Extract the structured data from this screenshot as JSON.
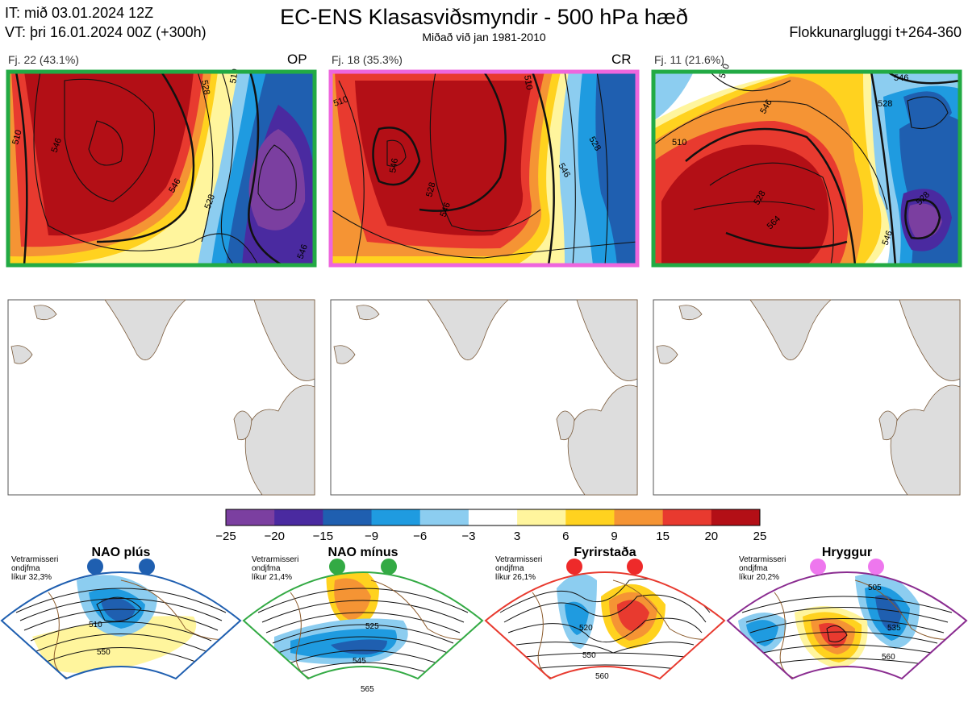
{
  "header": {
    "it_line": "IT: mið 03.01.2024 12Z",
    "vt_line": "VT: þri 16.01.2024 00Z  (+300h)",
    "title": "EC-ENS Klasasviðsmyndir - 500 hPa hæð",
    "subtitle": "Miðað við jan 1981-2010",
    "window": "Flokkunargluggi t+264-360"
  },
  "clusters": [
    {
      "label": "Fj. 22 (43.1%)",
      "code": "OP",
      "frame_color": "#22aa44",
      "contours": [
        "510",
        "546",
        "528",
        "546",
        "528",
        "546",
        "510"
      ]
    },
    {
      "label": "Fj. 18 (35.3%)",
      "code": "CR",
      "frame_color": "#ee66dd",
      "contours": [
        "510",
        "546",
        "528",
        "546",
        "510",
        "546",
        "528"
      ]
    },
    {
      "label": "Fj. 11 (21.6%)",
      "code": "",
      "frame_color": "#22aa44",
      "contours": [
        "510",
        "546",
        "528",
        "510",
        "546",
        "528",
        "546",
        "564"
      ]
    }
  ],
  "colorbar": {
    "ticks": [
      "−25",
      "−20",
      "−15",
      "−9",
      "−6",
      "−3",
      "3",
      "6",
      "9",
      "15",
      "20",
      "25"
    ],
    "colors": [
      "#7b3fa0",
      "#4a2aa0",
      "#1f5fb0",
      "#1f9be0",
      "#8ccdf0",
      "#ffffff",
      "#fff59d",
      "#ffd21f",
      "#f59434",
      "#e83a2f",
      "#b30f16"
    ]
  },
  "regimes": [
    {
      "name": "NAO plús",
      "note": [
        "Vetrarmisseri",
        "ondjfma",
        "líkur 32,3%"
      ],
      "frame_color": "#1f5fb0",
      "dot_color": "#1f5fb0",
      "contours": [
        "510",
        "550"
      ]
    },
    {
      "name": "NAO mínus",
      "note": [
        "Vetrarmisseri",
        "ondjfma",
        "líkur 21,4%"
      ],
      "frame_color": "#33aa44",
      "dot_color": "#33aa44",
      "contours": [
        "525",
        "545",
        "565"
      ]
    },
    {
      "name": "Fyrirstaða",
      "note": [
        "Vetrarmisseri",
        "ondjfma",
        "líkur 26,1%"
      ],
      "frame_color": "#e83a2f",
      "dot_color": "#ee2a2a",
      "contours": [
        "520",
        "550",
        "560"
      ]
    },
    {
      "name": "Hryggur",
      "note": [
        "Vetrarmisseri",
        "ondjfma",
        "líkur 20,2%"
      ],
      "frame_color": "#8a2c90",
      "dot_color": "#ee77ee",
      "contours": [
        "505",
        "535",
        "560"
      ]
    }
  ]
}
